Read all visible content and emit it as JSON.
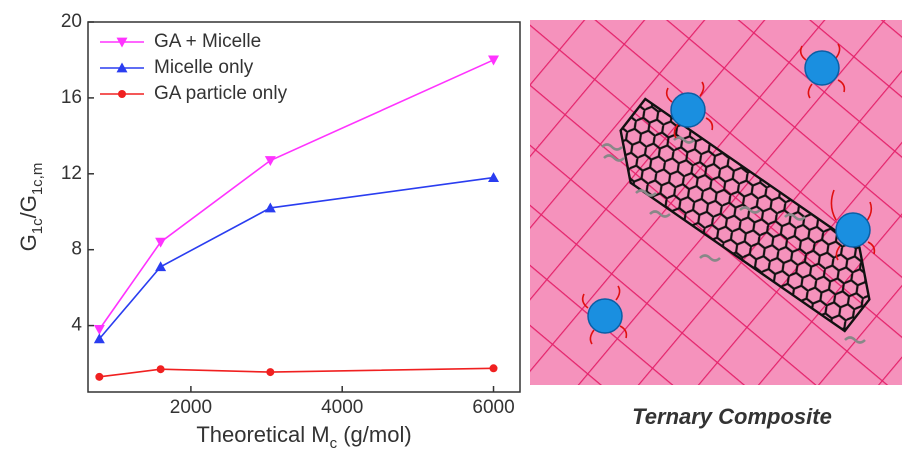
{
  "chart_data": {
    "type": "line",
    "x": [
      790,
      1600,
      3050,
      6000
    ],
    "series": [
      {
        "name": "GA + Micelle",
        "color": "#ff33ff",
        "marker": "triangle-down",
        "values": [
          3.8,
          8.4,
          12.7,
          18.0
        ]
      },
      {
        "name": "Micelle only",
        "color": "#2a3df0",
        "marker": "triangle-up",
        "values": [
          3.3,
          7.1,
          10.2,
          11.8
        ]
      },
      {
        "name": "GA particle only",
        "color": "#f02020",
        "marker": "circle",
        "values": [
          1.3,
          1.7,
          1.55,
          1.75
        ]
      }
    ],
    "xlabel": [
      "Theoretical M",
      "c",
      " (g/mol)"
    ],
    "ylabel": [
      "G",
      "1c",
      "/G",
      "1c,m"
    ],
    "xlim": [
      640,
      6350
    ],
    "ylim": [
      0.5,
      20
    ],
    "xticks": [
      2000,
      4000,
      6000
    ],
    "yticks": [
      4,
      8,
      12,
      16,
      20
    ],
    "legend": "upper-left"
  },
  "illustration": {
    "caption": "Ternary Composite"
  }
}
